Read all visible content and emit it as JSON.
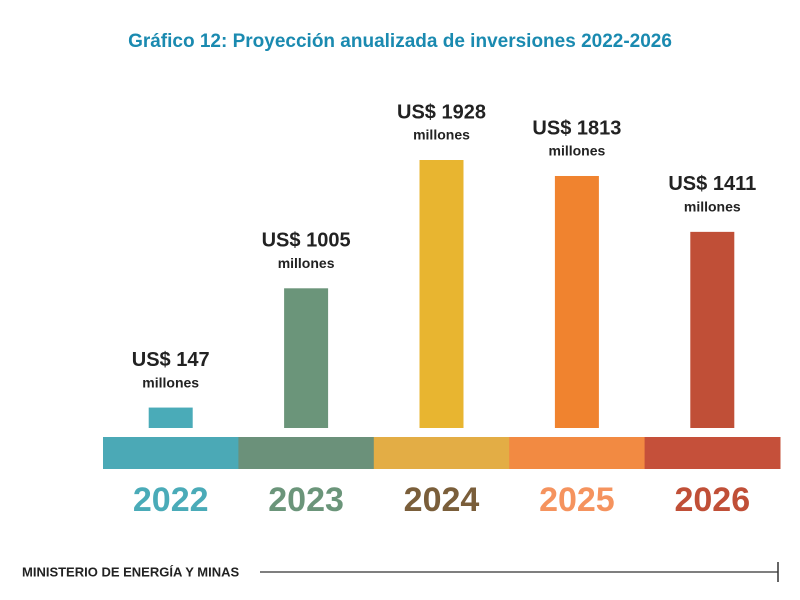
{
  "chart_data": {
    "type": "bar",
    "title": "Gráfico 12: Proyección anualizada de inversiones 2022-2026",
    "categories": [
      "2022",
      "2023",
      "2024",
      "2025",
      "2026"
    ],
    "values": [
      147,
      1005,
      1928,
      1813,
      1411
    ],
    "value_labels": [
      "US$ 147",
      "US$ 1005",
      "US$ 1928",
      "US$ 1813",
      "US$ 1411"
    ],
    "value_unit": "millones",
    "colors": [
      "#4aabb8",
      "#6b957a",
      "#e8b530",
      "#f0832f",
      "#c04f37"
    ],
    "band_colors": [
      "#4ba9b6",
      "#6b917a",
      "#e3ad45",
      "#f28a42",
      "#c5503a"
    ],
    "label_colors": [
      "#4aabb8",
      "#6b957a",
      "#7a5e3a",
      "#f5935e",
      "#c04f37"
    ],
    "footer": "MINISTERIO DE ENERGÍA Y MINAS"
  }
}
